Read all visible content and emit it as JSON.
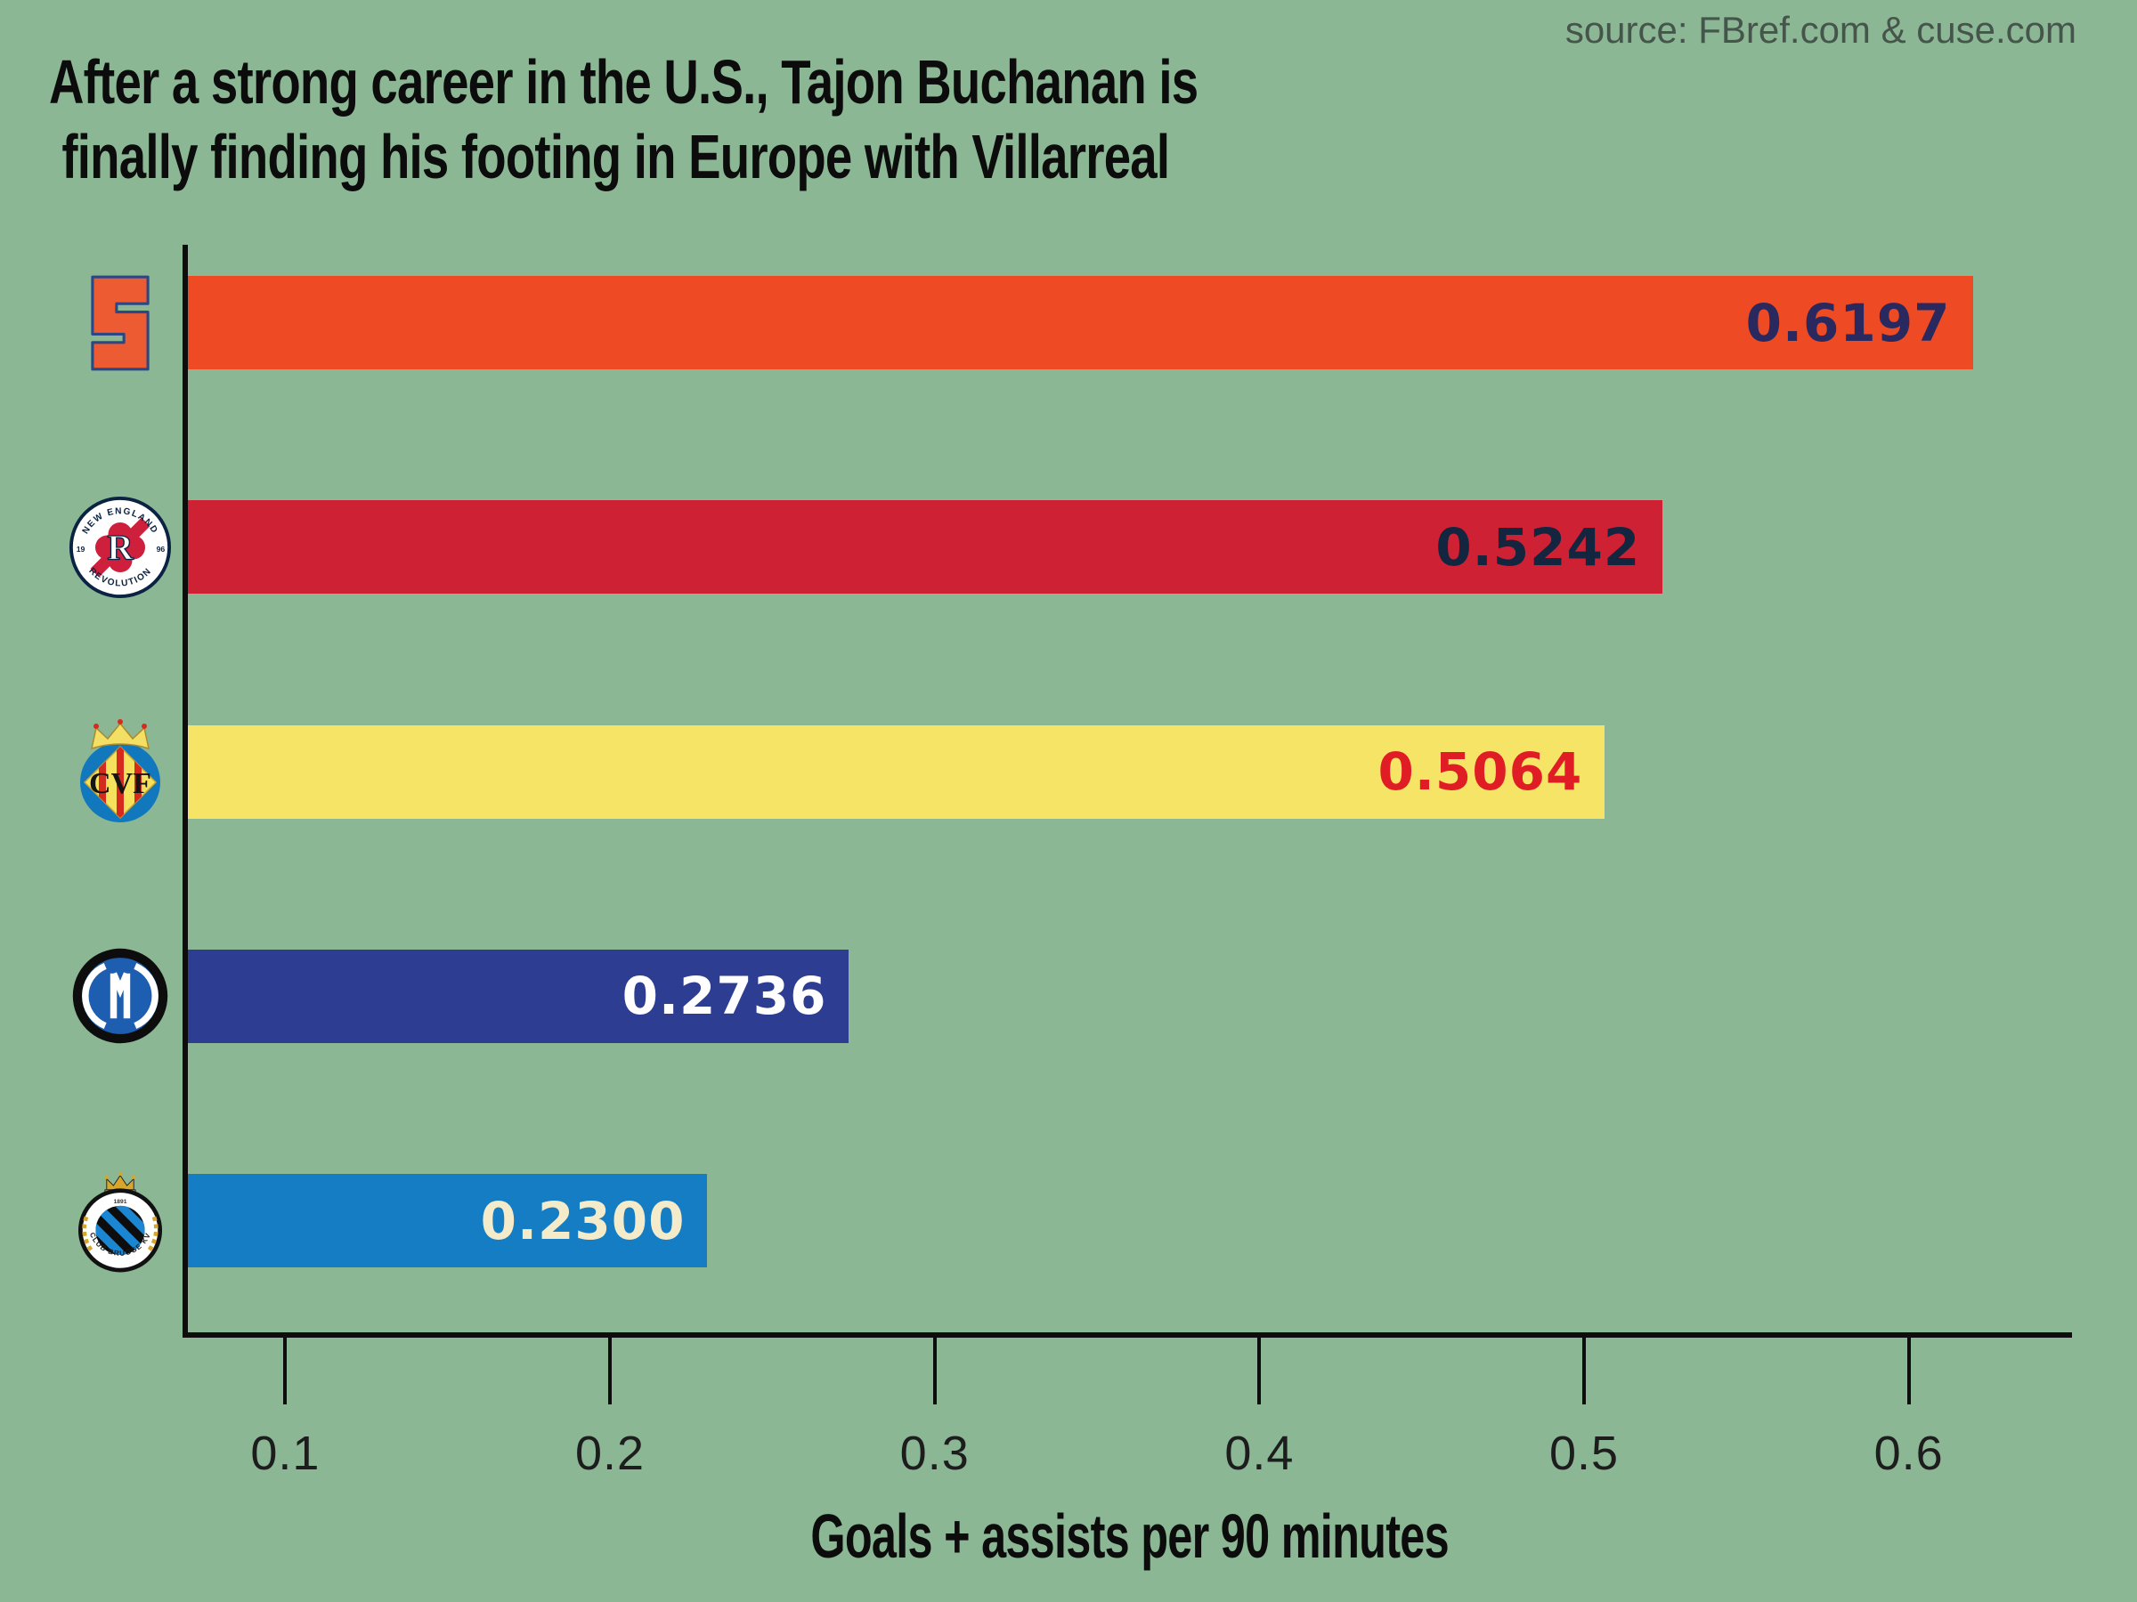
{
  "source": "source: FBref.com & cuse.com",
  "title": {
    "line1": "After a strong career in the U.S., Tajon Buchanan is",
    "line2": " finally finding his footing in Europe with Villarreal"
  },
  "chart_data": {
    "type": "bar",
    "orientation": "horizontal",
    "title": "After a strong career in the U.S., Tajon Buchanan is finally finding his footing in Europe with Villarreal",
    "xlabel": "Goals + assists per 90 minutes",
    "xlim": [
      0.07,
      0.65
    ],
    "xticks": [
      0.1,
      0.2,
      0.3,
      0.4,
      0.5,
      0.6
    ],
    "xtick_labels": [
      "0.1",
      "0.2",
      "0.3",
      "0.4",
      "0.5",
      "0.6"
    ],
    "grid": false,
    "legend": false,
    "categories": [
      "Syracuse Orange",
      "New England Revolution",
      "Villarreal CF",
      "Inter Milan",
      "Club Brugge KV"
    ],
    "values": [
      0.6197,
      0.5242,
      0.5064,
      0.2736,
      0.23
    ],
    "bars": [
      {
        "club": "Syracuse Orange",
        "value": 0.6197,
        "label": "0.6197",
        "bar_color": "#ee4a23",
        "label_color": "#29295f"
      },
      {
        "club": "New England Revolution",
        "value": 0.5242,
        "label": "0.5242",
        "bar_color": "#ce2133",
        "label_color": "#142540"
      },
      {
        "club": "Villarreal CF",
        "value": 0.5064,
        "label": "0.5064",
        "bar_color": "#f6e466",
        "label_color": "#e01d25"
      },
      {
        "club": "Inter Milan",
        "value": 0.2736,
        "label": "0.2736",
        "bar_color": "#2d3d92",
        "label_color": "#ffffff"
      },
      {
        "club": "Club Brugge KV",
        "value": 0.23,
        "label": "0.2300",
        "bar_color": "#157dc3",
        "label_color": "#f4ebcb"
      }
    ]
  },
  "logos": {
    "syracuse": {
      "letter": "S"
    },
    "revolution": {
      "top": "NEW ENGLAND",
      "bottom": "REVOLUTION",
      "year_left": "19",
      "year_right": "96",
      "monogram": "R"
    },
    "villarreal": {
      "monogram": "CVF"
    },
    "brugge": {
      "arc": "CLUB BRUGGE KV",
      "year": "1891"
    }
  },
  "colors": {
    "background": "#8bb795",
    "axis": "#0d0d0d",
    "title_text": "#0c0c0c",
    "source_text": "#46554b",
    "tick_text": "#1d1d1d"
  }
}
